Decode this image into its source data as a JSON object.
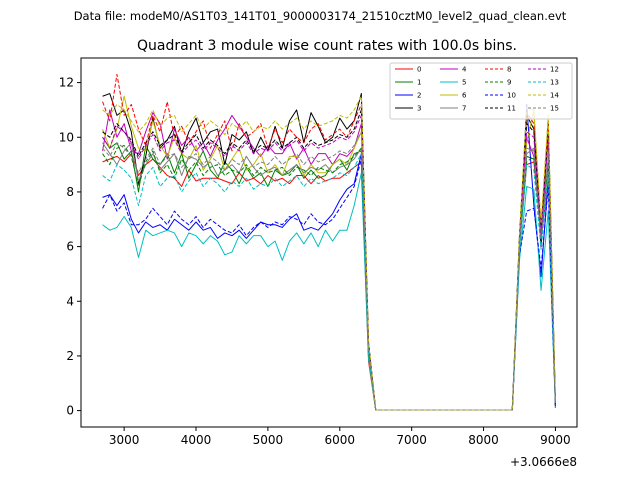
{
  "figure": {
    "suptitle": "Data file: modeM0/AS1T03_141T01_9000003174_21510cztM0_level2_quad_clean.evt",
    "title": "Quadrant 3 module wise count rates with 100.0s bins.",
    "x_offset_label": "+3.0666e8"
  },
  "chart_data": {
    "type": "line",
    "title": "Quadrant 3 module wise count rates with 100.0s bins.",
    "xlabel": "",
    "ylabel": "",
    "x_offset": 306660000,
    "xlim": [
      2400,
      9300
    ],
    "ylim": [
      -0.6,
      12.9
    ],
    "xticks": [
      3000,
      4000,
      5000,
      6000,
      7000,
      8000,
      9000
    ],
    "xtick_labels": [
      "3000",
      "4000",
      "5000",
      "6000",
      "7000",
      "8000",
      "9000"
    ],
    "yticks": [
      0,
      2,
      4,
      6,
      8,
      10,
      12
    ],
    "ytick_labels": [
      "0",
      "2",
      "4",
      "6",
      "8",
      "10",
      "12"
    ],
    "grid": false,
    "legend_position": "top-right",
    "x": [
      2700,
      2800,
      2900,
      3000,
      3100,
      3200,
      3300,
      3400,
      3500,
      3600,
      3700,
      3800,
      3900,
      4000,
      4100,
      4200,
      4300,
      4400,
      4500,
      4600,
      4700,
      4800,
      4900,
      5000,
      5100,
      5200,
      5300,
      5400,
      5500,
      5600,
      5700,
      5800,
      5900,
      6000,
      6100,
      6200,
      6300,
      6400,
      6500,
      6600,
      6700,
      6800,
      6900,
      7000,
      7100,
      7200,
      7300,
      7400,
      7500,
      7600,
      7700,
      7800,
      7900,
      8000,
      8100,
      8200,
      8300,
      8400,
      8500,
      8600,
      8700,
      8800,
      8900,
      9000
    ],
    "series": [
      {
        "name": "0",
        "color": "#ff0000",
        "dash": "solid",
        "values": [
          9.1,
          9.2,
          9.3,
          9.1,
          9.4,
          8.6,
          9.0,
          9.2,
          8.9,
          8.6,
          8.5,
          8.2,
          8.8,
          8.4,
          8.5,
          8.5,
          8.5,
          8.4,
          8.3,
          8.7,
          8.4,
          8.5,
          8.3,
          8.6,
          8.4,
          8.5,
          8.3,
          8.6,
          8.6,
          8.3,
          8.6,
          8.4,
          8.5,
          8.5,
          8.7,
          8.9,
          9.1,
          1.8,
          0.02,
          0.02,
          0.02,
          0.02,
          0.02,
          0.02,
          0.02,
          0.02,
          0.02,
          0.02,
          0.02,
          0.02,
          0.02,
          0.02,
          0.02,
          0.02,
          0.02,
          0.02,
          0.02,
          0.02,
          6.0,
          9.0,
          9.1,
          6.5,
          9.0,
          0.2
        ]
      },
      {
        "name": "1",
        "color": "#008000",
        "dash": "solid",
        "values": [
          10.0,
          9.6,
          9.8,
          9.2,
          9.5,
          8.0,
          9.7,
          9.2,
          9.0,
          9.4,
          8.7,
          9.4,
          8.5,
          9.0,
          9.5,
          8.8,
          8.5,
          9.1,
          8.8,
          8.3,
          8.9,
          8.5,
          8.7,
          8.2,
          8.8,
          8.6,
          8.7,
          9.0,
          8.5,
          8.8,
          8.5,
          8.6,
          9.0,
          9.2,
          8.8,
          9.4,
          9.5,
          2.2,
          0.02,
          0.02,
          0.02,
          0.02,
          0.02,
          0.02,
          0.02,
          0.02,
          0.02,
          0.02,
          0.02,
          0.02,
          0.02,
          0.02,
          0.02,
          0.02,
          0.02,
          0.02,
          0.02,
          0.02,
          6.2,
          9.3,
          9.2,
          6.8,
          9.1,
          0.2
        ]
      },
      {
        "name": "2",
        "color": "#0000ff",
        "dash": "solid",
        "values": [
          7.8,
          7.9,
          7.5,
          7.9,
          7.0,
          6.5,
          6.9,
          6.7,
          6.8,
          6.6,
          7.0,
          6.8,
          6.6,
          6.9,
          6.6,
          6.7,
          6.3,
          6.5,
          6.4,
          6.6,
          6.3,
          6.6,
          6.9,
          6.8,
          6.8,
          6.7,
          7.0,
          7.2,
          6.6,
          6.7,
          6.6,
          6.9,
          7.2,
          7.7,
          8.1,
          8.3,
          9.4,
          2.3,
          0.02,
          0.02,
          0.02,
          0.02,
          0.02,
          0.02,
          0.02,
          0.02,
          0.02,
          0.02,
          0.02,
          0.02,
          0.02,
          0.02,
          0.02,
          0.02,
          0.02,
          0.02,
          0.02,
          0.02,
          5.8,
          11.2,
          7.5,
          4.9,
          8.5,
          0.1
        ]
      },
      {
        "name": "3",
        "color": "#000000",
        "dash": "solid",
        "values": [
          11.5,
          11.6,
          10.8,
          11.0,
          10.2,
          8.3,
          9.3,
          10.7,
          9.6,
          9.9,
          10.4,
          9.4,
          10.2,
          10.7,
          9.8,
          10.2,
          10.3,
          9.0,
          10.1,
          9.9,
          10.2,
          9.4,
          10.0,
          9.5,
          10.4,
          9.6,
          10.6,
          11.0,
          9.8,
          10.9,
          10.4,
          9.8,
          10.0,
          10.7,
          10.3,
          10.6,
          11.6,
          2.5,
          0.02,
          0.02,
          0.02,
          0.02,
          0.02,
          0.02,
          0.02,
          0.02,
          0.02,
          0.02,
          0.02,
          0.02,
          0.02,
          0.02,
          0.02,
          0.02,
          0.02,
          0.02,
          0.02,
          0.02,
          6.4,
          10.8,
          10.3,
          6.0,
          10.6,
          0.3
        ]
      },
      {
        "name": "4",
        "color": "#bf00bf",
        "dash": "solid",
        "values": [
          9.5,
          11.0,
          10.0,
          10.5,
          9.5,
          9.4,
          10.2,
          10.9,
          10.5,
          9.2,
          10.3,
          9.7,
          10.0,
          9.5,
          9.8,
          9.3,
          9.9,
          10.3,
          10.8,
          10.4,
          10.0,
          9.6,
          9.3,
          9.7,
          9.4,
          9.4,
          9.8,
          9.2,
          9.6,
          9.0,
          9.4,
          9.4,
          9.0,
          9.4,
          9.3,
          9.6,
          10.5,
          2.0,
          0.02,
          0.02,
          0.02,
          0.02,
          0.02,
          0.02,
          0.02,
          0.02,
          0.02,
          0.02,
          0.02,
          0.02,
          0.02,
          0.02,
          0.02,
          0.02,
          0.02,
          0.02,
          0.02,
          0.02,
          6.0,
          10.0,
          9.3,
          6.3,
          8.4,
          0.2
        ]
      },
      {
        "name": "5",
        "color": "#00bfbf",
        "dash": "solid",
        "values": [
          6.8,
          6.6,
          6.7,
          7.1,
          6.7,
          5.6,
          6.6,
          6.4,
          6.5,
          6.6,
          6.5,
          6.0,
          6.5,
          6.4,
          6.1,
          6.4,
          6.2,
          5.7,
          5.8,
          6.4,
          6.1,
          6.4,
          6.4,
          6.0,
          6.2,
          5.5,
          6.2,
          6.5,
          6.1,
          6.5,
          6.0,
          6.6,
          6.2,
          6.6,
          6.6,
          7.5,
          8.7,
          1.9,
          0.02,
          0.02,
          0.02,
          0.02,
          0.02,
          0.02,
          0.02,
          0.02,
          0.02,
          0.02,
          0.02,
          0.02,
          0.02,
          0.02,
          0.02,
          0.02,
          0.02,
          0.02,
          0.02,
          0.02,
          5.5,
          8.2,
          8.1,
          4.4,
          7.3,
          0.1
        ]
      },
      {
        "name": "6",
        "color": "#bfbf00",
        "dash": "solid",
        "values": [
          10.3,
          9.6,
          10.3,
          11.5,
          10.4,
          9.6,
          9.5,
          10.6,
          9.7,
          9.3,
          10.0,
          9.4,
          9.2,
          9.7,
          8.8,
          9.2,
          9.7,
          8.8,
          9.2,
          9.6,
          8.8,
          9.0,
          9.4,
          8.7,
          9.0,
          8.6,
          9.3,
          9.3,
          8.6,
          9.0,
          8.7,
          8.7,
          9.0,
          9.2,
          9.0,
          9.6,
          10.2,
          2.2,
          0.02,
          0.02,
          0.02,
          0.02,
          0.02,
          0.02,
          0.02,
          0.02,
          0.02,
          0.02,
          0.02,
          0.02,
          0.02,
          0.02,
          0.02,
          0.02,
          0.02,
          0.02,
          0.02,
          0.02,
          6.1,
          9.8,
          11.0,
          6.5,
          10.4,
          0.2
        ]
      },
      {
        "name": "7",
        "color": "#808080",
        "dash": "solid",
        "values": [
          9.8,
          9.4,
          9.0,
          9.5,
          9.8,
          8.4,
          9.0,
          9.4,
          8.8,
          9.1,
          9.4,
          8.6,
          9.3,
          9.2,
          8.9,
          9.1,
          8.6,
          8.8,
          9.0,
          8.7,
          9.3,
          8.9,
          8.6,
          8.8,
          8.9,
          8.6,
          8.8,
          9.0,
          8.7,
          8.9,
          8.8,
          9.0,
          8.7,
          8.9,
          9.0,
          9.2,
          9.6,
          2.1,
          0.02,
          0.02,
          0.02,
          0.02,
          0.02,
          0.02,
          0.02,
          0.02,
          0.02,
          0.02,
          0.02,
          0.02,
          0.02,
          0.02,
          0.02,
          0.02,
          0.02,
          0.02,
          0.02,
          0.02,
          6.0,
          9.4,
          9.6,
          6.4,
          9.2,
          0.2
        ]
      },
      {
        "name": "8",
        "color": "#ff0000",
        "dash": "dashed",
        "values": [
          11.3,
          10.6,
          12.3,
          10.8,
          11.2,
          10.3,
          9.7,
          10.8,
          10.2,
          11.3,
          10.0,
          10.4,
          9.8,
          10.2,
          10.6,
          9.6,
          10.1,
          10.6,
          9.5,
          10.5,
          10.0,
          10.2,
          10.5,
          9.6,
          10.3,
          9.8,
          10.3,
          10.0,
          9.8,
          10.3,
          10.5,
          9.9,
          10.1,
          10.3,
          10.0,
          10.6,
          11.2,
          2.4,
          0.02,
          0.02,
          0.02,
          0.02,
          0.02,
          0.02,
          0.02,
          0.02,
          0.02,
          0.02,
          0.02,
          0.02,
          0.02,
          0.02,
          0.02,
          0.02,
          0.02,
          0.02,
          0.02,
          0.02,
          6.3,
          10.9,
          10.5,
          6.7,
          10.5,
          0.2
        ]
      },
      {
        "name": "9",
        "color": "#008000",
        "dash": "dashed",
        "values": [
          9.4,
          9.0,
          9.6,
          9.7,
          9.3,
          8.2,
          9.1,
          9.5,
          8.7,
          9.0,
          8.5,
          9.2,
          8.8,
          9.1,
          8.6,
          8.9,
          9.0,
          8.6,
          8.8,
          8.7,
          9.0,
          8.6,
          8.9,
          8.7,
          8.8,
          8.9,
          8.6,
          8.9,
          8.8,
          8.6,
          8.9,
          8.8,
          8.7,
          9.0,
          9.1,
          9.3,
          9.6,
          2.1,
          0.02,
          0.02,
          0.02,
          0.02,
          0.02,
          0.02,
          0.02,
          0.02,
          0.02,
          0.02,
          0.02,
          0.02,
          0.02,
          0.02,
          0.02,
          0.02,
          0.02,
          0.02,
          0.02,
          0.02,
          6.0,
          9.1,
          9.3,
          6.4,
          9.0,
          0.2
        ]
      },
      {
        "name": "10",
        "color": "#0000ff",
        "dash": "dashed",
        "values": [
          7.4,
          7.9,
          7.3,
          7.6,
          6.8,
          6.8,
          7.0,
          7.4,
          7.1,
          6.8,
          7.3,
          7.0,
          6.8,
          7.1,
          6.7,
          7.0,
          6.8,
          6.6,
          6.5,
          6.8,
          6.4,
          6.7,
          6.9,
          6.7,
          6.9,
          6.8,
          7.1,
          7.0,
          6.8,
          7.2,
          6.9,
          6.8,
          7.0,
          7.4,
          7.8,
          8.2,
          9.2,
          2.2,
          0.02,
          0.02,
          0.02,
          0.02,
          0.02,
          0.02,
          0.02,
          0.02,
          0.02,
          0.02,
          0.02,
          0.02,
          0.02,
          0.02,
          0.02,
          0.02,
          0.02,
          0.02,
          0.02,
          0.02,
          5.7,
          7.3,
          7.4,
          5.2,
          8.2,
          0.1
        ]
      },
      {
        "name": "11",
        "color": "#000000",
        "dash": "dashed",
        "values": [
          10.2,
          10.0,
          10.5,
          10.2,
          9.9,
          9.3,
          9.8,
          10.2,
          9.7,
          9.9,
          10.1,
          9.5,
          9.8,
          10.1,
          9.6,
          9.9,
          9.7,
          9.4,
          9.8,
          9.6,
          9.9,
          9.5,
          9.7,
          9.6,
          9.9,
          9.6,
          9.8,
          10.0,
          9.6,
          9.9,
          9.7,
          9.8,
          9.9,
          10.1,
          10.0,
          10.3,
          11.0,
          2.4,
          0.02,
          0.02,
          0.02,
          0.02,
          0.02,
          0.02,
          0.02,
          0.02,
          0.02,
          0.02,
          0.02,
          0.02,
          0.02,
          0.02,
          0.02,
          0.02,
          0.02,
          0.02,
          0.02,
          0.02,
          6.3,
          10.5,
          10.2,
          6.6,
          10.1,
          0.2
        ]
      },
      {
        "name": "12",
        "color": "#bf00bf",
        "dash": "dashed",
        "values": [
          10.0,
          9.6,
          10.4,
          10.2,
          9.8,
          9.2,
          9.7,
          10.1,
          9.5,
          9.8,
          9.9,
          9.4,
          9.7,
          9.9,
          9.5,
          9.8,
          9.6,
          9.3,
          9.7,
          9.5,
          9.8,
          9.4,
          9.6,
          9.5,
          9.8,
          9.5,
          9.7,
          9.9,
          9.5,
          9.8,
          9.6,
          9.7,
          9.8,
          10.0,
          9.9,
          10.2,
          10.8,
          2.3,
          0.02,
          0.02,
          0.02,
          0.02,
          0.02,
          0.02,
          0.02,
          0.02,
          0.02,
          0.02,
          0.02,
          0.02,
          0.02,
          0.02,
          0.02,
          0.02,
          0.02,
          0.02,
          0.02,
          0.02,
          6.2,
          10.2,
          10.0,
          6.5,
          9.9,
          0.2
        ]
      },
      {
        "name": "13",
        "color": "#00bfbf",
        "dash": "dashed",
        "values": [
          8.6,
          8.4,
          9.0,
          8.8,
          8.5,
          7.5,
          8.6,
          8.9,
          8.2,
          8.5,
          8.6,
          8.0,
          8.4,
          8.7,
          8.2,
          8.5,
          8.3,
          8.0,
          8.4,
          8.2,
          8.5,
          8.1,
          8.3,
          8.2,
          8.5,
          8.2,
          8.4,
          8.6,
          8.2,
          8.5,
          8.3,
          8.4,
          8.5,
          8.7,
          8.6,
          8.9,
          9.4,
          2.0,
          0.02,
          0.02,
          0.02,
          0.02,
          0.02,
          0.02,
          0.02,
          0.02,
          0.02,
          0.02,
          0.02,
          0.02,
          0.02,
          0.02,
          0.02,
          0.02,
          0.02,
          0.02,
          0.02,
          0.02,
          5.8,
          9.0,
          8.8,
          5.9,
          8.7,
          0.2
        ]
      },
      {
        "name": "14",
        "color": "#bfbf00",
        "dash": "dashed",
        "values": [
          11.0,
          10.8,
          11.2,
          11.0,
          10.6,
          10.2,
          10.5,
          11.0,
          10.4,
          10.7,
          10.8,
          10.2,
          10.5,
          10.8,
          10.3,
          10.6,
          10.4,
          10.1,
          10.5,
          10.3,
          10.6,
          10.2,
          10.4,
          10.3,
          10.6,
          10.3,
          10.5,
          10.7,
          10.3,
          10.6,
          10.4,
          10.5,
          10.6,
          10.8,
          10.7,
          11.0,
          11.5,
          2.5,
          0.02,
          0.02,
          0.02,
          0.02,
          0.02,
          0.02,
          0.02,
          0.02,
          0.02,
          0.02,
          0.02,
          0.02,
          0.02,
          0.02,
          0.02,
          0.02,
          0.02,
          0.02,
          0.02,
          0.02,
          6.5,
          11.1,
          11.0,
          6.9,
          10.8,
          0.3
        ]
      },
      {
        "name": "15",
        "color": "#808080",
        "dash": "dashed",
        "values": [
          9.6,
          9.3,
          9.8,
          9.6,
          9.3,
          8.7,
          9.2,
          9.6,
          9.0,
          9.3,
          9.4,
          8.9,
          9.2,
          9.4,
          9.0,
          9.3,
          9.1,
          8.8,
          9.2,
          9.0,
          9.3,
          8.9,
          9.1,
          9.0,
          9.3,
          9.0,
          9.2,
          9.4,
          9.0,
          9.3,
          9.1,
          9.2,
          9.3,
          9.5,
          9.4,
          9.7,
          10.2,
          2.2,
          0.02,
          0.02,
          0.02,
          0.02,
          0.02,
          0.02,
          0.02,
          0.02,
          0.02,
          0.02,
          0.02,
          0.02,
          0.02,
          0.02,
          0.02,
          0.02,
          0.02,
          0.02,
          0.02,
          0.02,
          6.1,
          9.6,
          9.5,
          6.3,
          9.4,
          0.2
        ]
      }
    ]
  }
}
